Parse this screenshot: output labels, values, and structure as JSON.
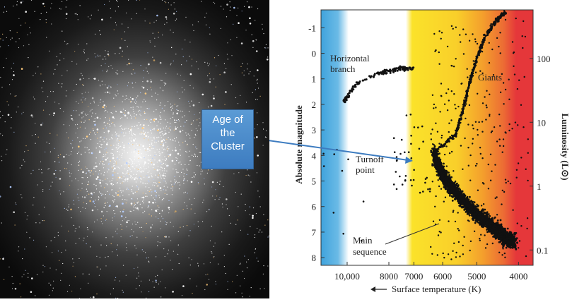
{
  "callout": {
    "line1": "Age of",
    "line2": "the",
    "line3": "Cluster"
  },
  "chart_data": {
    "type": "scatter",
    "title": "",
    "xlabel": "Surface temperature (K)",
    "ylabel": "Absolute magnitude",
    "y2label": "Luminosity (L⊙)",
    "x_ticks": [
      "10,000",
      "8000",
      "7000",
      "6000",
      "5000",
      "4000"
    ],
    "y_ticks": [
      "-1",
      "0",
      "1",
      "2",
      "3",
      "4",
      "5",
      "6",
      "7",
      "8"
    ],
    "y2_ticks": [
      "100",
      "10",
      "1",
      "0.1"
    ],
    "ylim": [
      8.3,
      -1.7
    ],
    "xlim_K": [
      11500,
      3700
    ],
    "x_axis_reversed": true,
    "annotations": {
      "horizontal_branch": "Horizontal branch",
      "giants": "Giants",
      "turnoff": "Turnoff point",
      "main_sequence": "Main sequence"
    },
    "regions": [
      {
        "name": "main_sequence",
        "points": [
          [
            6300,
            3.9
          ],
          [
            6000,
            4.8
          ],
          [
            5500,
            5.6
          ],
          [
            5000,
            6.3
          ],
          [
            4600,
            6.8
          ],
          [
            4300,
            7.2
          ],
          [
            4100,
            7.4
          ]
        ]
      },
      {
        "name": "subgiant_giant_branch",
        "points": [
          [
            6300,
            3.9
          ],
          [
            5600,
            3.2
          ],
          [
            5400,
            2.3
          ],
          [
            5200,
            1.2
          ],
          [
            5000,
            0.2
          ],
          [
            4800,
            -0.6
          ],
          [
            4500,
            -1.3
          ],
          [
            4300,
            -1.6
          ]
        ]
      },
      {
        "name": "horizontal_branch",
        "points": [
          [
            10200,
            1.9
          ],
          [
            9500,
            1.2
          ],
          [
            8500,
            0.8
          ],
          [
            7600,
            0.6
          ],
          [
            7000,
            0.6
          ]
        ]
      }
    ],
    "background_colors": [
      "#3fa3dc",
      "#ffffff",
      "#fbe22a",
      "#f4a02c",
      "#e5373a"
    ]
  }
}
